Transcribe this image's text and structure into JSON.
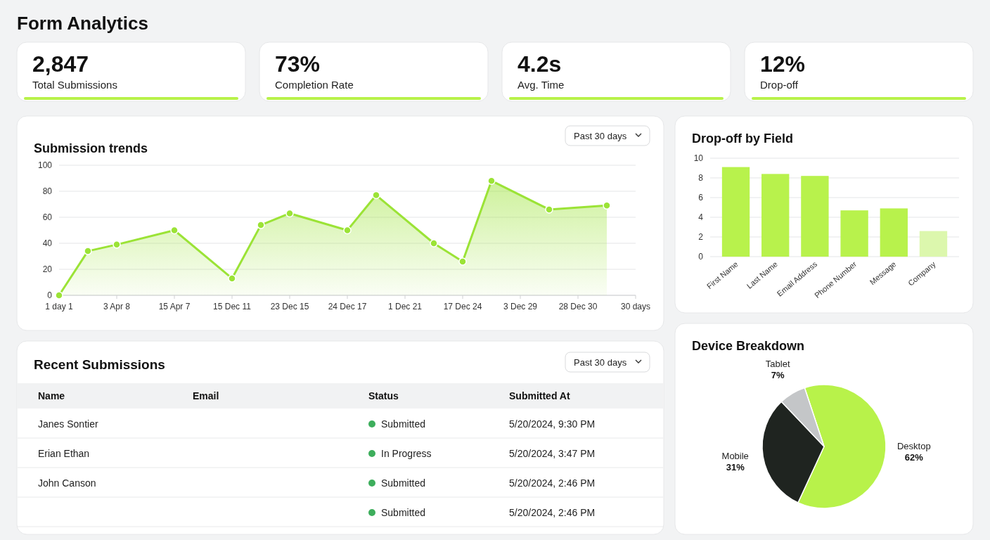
{
  "chart_data": [
    {
      "type": "other",
      "title": "Form Analytics",
      "annotations": [
        "2,847",
        "Total Submissions",
        "73%",
        "Completion Rate",
        "4.2s",
        "Avg. Time",
        "12%",
        "Drop-off"
      ]
    },
    {
      "type": "area",
      "title": "Submission trends",
      "annotations": [
        "Past 30 days"
      ],
      "color": "#9be336",
      "marker": "circle",
      "grid": "y",
      "categories": [
        "1 day 1",
        null,
        "3 Apr 8",
        null,
        "15 Apr 7",
        null,
        "15 Dec 11",
        null,
        "23 Dec 15",
        null,
        "24 Dec 17",
        null,
        "1 Dec 21",
        null,
        "17 Dec 24",
        null,
        "3 Dec 29",
        null,
        "28 Dec 30",
        null,
        "30 days"
      ],
      "values": [
        0,
        34,
        39,
        null,
        50,
        null,
        13,
        54,
        63,
        null,
        50,
        77,
        null,
        40,
        26,
        88,
        null,
        66,
        null,
        69,
        null
      ],
      "ylim": [
        0,
        100
      ],
      "yticks": [
        0,
        20,
        40,
        60,
        80,
        100
      ]
    },
    {
      "type": "bar",
      "title": "Drop-off by Field",
      "grid": "y",
      "categories": [
        "First Name",
        "Last Name",
        "Email Address",
        "Phone Number",
        "Message",
        "Company"
      ],
      "values": [
        9.1,
        8.4,
        8.2,
        4.7,
        4.9,
        2.6
      ],
      "colors": [
        "#b8f24c",
        "#b8f24c",
        "#b8f24c",
        "#b8f24c",
        "#b8f24c",
        "#dcf7ad"
      ],
      "ylim": [
        0,
        10
      ],
      "yticks": [
        0,
        2,
        4,
        6,
        8,
        10
      ]
    },
    {
      "type": "other",
      "title": "Recent Submissions",
      "categories": [
        "Name",
        "Email",
        "Status",
        "Submitted At"
      ],
      "y_categories": [
        "Janes Sontier",
        "Erian Ethan",
        "John Canson",
        null
      ],
      "annotations": [
        "Past 30 days",
        "Submitted",
        "5/20/2024, 9:30 PM",
        "In Progress",
        "5/20/2024, 3:47 PM",
        "Submitted",
        "5/20/2024, 2:46 PM",
        "Submitted",
        "5/20/2024, 2:46 PM"
      ]
    },
    {
      "type": "pie",
      "title": "Device Breakdown",
      "categories": [
        "Desktop",
        "Mobile",
        "Tablet"
      ],
      "values": [
        62,
        31,
        7
      ],
      "value_labels": [
        "62%",
        "31%",
        "7%"
      ],
      "colors": [
        "#b8f24a",
        "#1f2420",
        "#c4c6c8"
      ]
    }
  ]
}
